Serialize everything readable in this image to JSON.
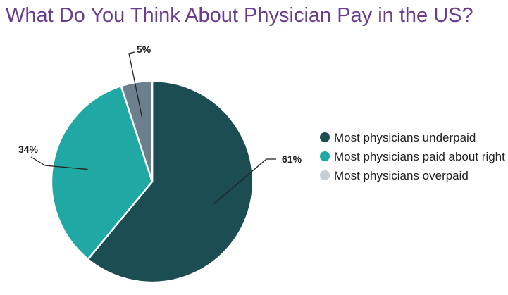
{
  "title": "What Do You Think About Physician Pay in the US?",
  "chart_data": {
    "type": "pie",
    "title": "What Do You Think About Physician Pay in the US?",
    "slices": [
      {
        "label": "Most physicians underpaid",
        "value": 61,
        "display": "61%",
        "color": "#1b4d53"
      },
      {
        "label": "Most physicians paid about right",
        "value": 34,
        "display": "34%",
        "color": "#1fa8a4"
      },
      {
        "label": "Most physicians overpaid",
        "value": 5,
        "display": "5%",
        "color": "#6b7f8c"
      }
    ],
    "legend_position": "right"
  }
}
